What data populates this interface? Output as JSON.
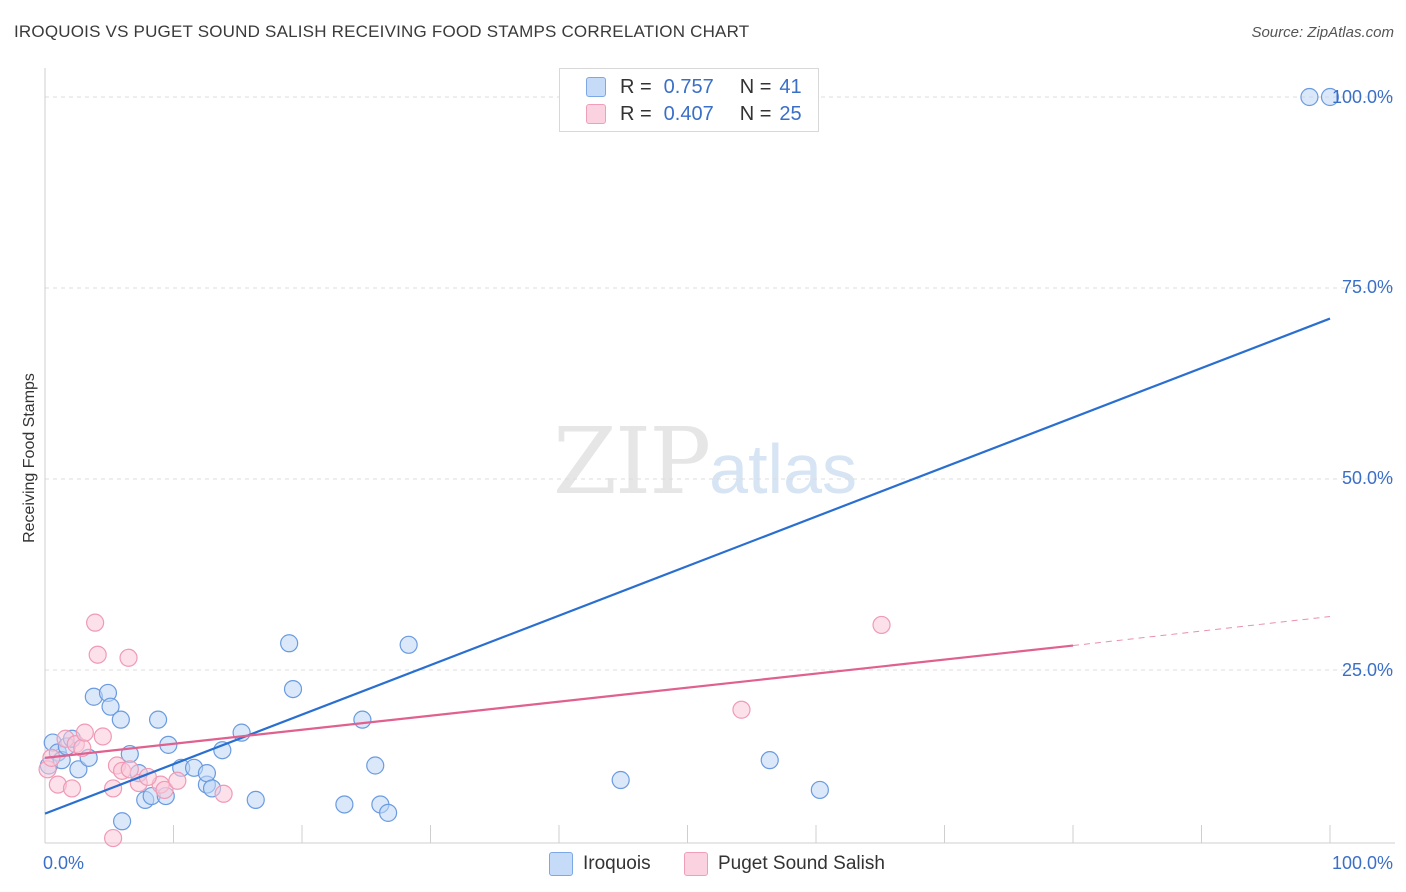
{
  "header": {
    "title": "IROQUOIS VS PUGET SOUND SALISH RECEIVING FOOD STAMPS CORRELATION CHART",
    "source": "Source: ZipAtlas.com"
  },
  "watermark": {
    "zip": "ZIP",
    "atlas": "atlas"
  },
  "legend": {
    "rows": [
      {
        "r_label": "R =",
        "r_value": "0.757",
        "n_label": "N =",
        "n_value": "41",
        "color": "#aecbf2"
      },
      {
        "r_label": "R =",
        "r_value": "0.407",
        "n_label": "N =",
        "n_value": "25",
        "color": "#f8c0d2"
      }
    ]
  },
  "bottom_legend": [
    {
      "label": "Iroquois",
      "color": "#bdd5f5"
    },
    {
      "label": "Puget Sound Salish",
      "color": "#f9c9d8"
    }
  ],
  "chart_data": {
    "type": "scatter",
    "title": "IROQUOIS VS PUGET SOUND SALISH RECEIVING FOOD STAMPS CORRELATION CHART",
    "xlabel": "",
    "ylabel": "Receiving Food Stamps",
    "xlim": [
      0,
      100
    ],
    "ylim": [
      0,
      100
    ],
    "x_tick_labels": [
      "0.0%",
      "100.0%"
    ],
    "y_tick_labels": [
      "25.0%",
      "50.0%",
      "75.0%",
      "100.0%"
    ],
    "y_ticks": [
      25,
      50,
      75,
      100
    ],
    "grid": true,
    "series": [
      {
        "name": "Iroquois",
        "color": "#6a9be0",
        "fill": "#bdd5f5",
        "line_color": "#2a6fd0",
        "trend": {
          "x0": 0,
          "y0": 6.2,
          "x1": 100,
          "y1": 71.0
        },
        "points": [
          [
            0.3,
            12.5
          ],
          [
            0.6,
            15.5
          ],
          [
            1.0,
            14.2
          ],
          [
            1.3,
            13.2
          ],
          [
            1.7,
            15.0
          ],
          [
            2.1,
            16.0
          ],
          [
            2.6,
            12.0
          ],
          [
            3.4,
            13.5
          ],
          [
            3.8,
            21.5
          ],
          [
            4.9,
            22.0
          ],
          [
            5.1,
            20.2
          ],
          [
            5.9,
            18.5
          ],
          [
            6.6,
            14.0
          ],
          [
            7.3,
            11.5
          ],
          [
            6.0,
            5.2
          ],
          [
            7.8,
            8.0
          ],
          [
            8.3,
            8.5
          ],
          [
            8.8,
            18.5
          ],
          [
            9.4,
            8.5
          ],
          [
            9.6,
            15.2
          ],
          [
            10.6,
            12.2
          ],
          [
            11.6,
            12.2
          ],
          [
            12.6,
            10.0
          ],
          [
            12.6,
            11.5
          ],
          [
            13.0,
            9.5
          ],
          [
            13.8,
            14.5
          ],
          [
            15.3,
            16.8
          ],
          [
            16.4,
            8.0
          ],
          [
            19.0,
            28.5
          ],
          [
            19.3,
            22.5
          ],
          [
            23.3,
            7.4
          ],
          [
            24.7,
            18.5
          ],
          [
            25.7,
            12.5
          ],
          [
            26.1,
            7.4
          ],
          [
            26.7,
            6.3
          ],
          [
            28.3,
            28.3
          ],
          [
            44.8,
            10.6
          ],
          [
            56.4,
            13.2
          ],
          [
            60.3,
            9.3
          ],
          [
            98.4,
            100.0
          ],
          [
            100.0,
            100.0
          ]
        ]
      },
      {
        "name": "Puget Sound Salish",
        "color": "#f09ab5",
        "fill": "#f9c9d8",
        "line_color": "#e0608e",
        "trend": {
          "x0": 0,
          "y0": 13.5,
          "x1": 80,
          "y1": 28.2
        },
        "trend_dashed": {
          "x0": 80,
          "y0": 28.2,
          "x1": 100,
          "y1": 32.0
        },
        "points": [
          [
            0.2,
            12.0
          ],
          [
            0.5,
            13.5
          ],
          [
            1.0,
            10.0
          ],
          [
            1.6,
            16.0
          ],
          [
            2.1,
            9.5
          ],
          [
            2.4,
            15.3
          ],
          [
            2.9,
            14.8
          ],
          [
            3.1,
            16.8
          ],
          [
            3.9,
            31.2
          ],
          [
            4.1,
            27.0
          ],
          [
            4.5,
            16.3
          ],
          [
            5.3,
            9.5
          ],
          [
            5.6,
            12.5
          ],
          [
            6.0,
            11.8
          ],
          [
            6.5,
            26.6
          ],
          [
            7.3,
            10.2
          ],
          [
            9.0,
            10.0
          ],
          [
            9.3,
            9.3
          ],
          [
            10.3,
            10.5
          ],
          [
            13.9,
            8.8
          ],
          [
            5.3,
            3.0
          ],
          [
            6.6,
            12.0
          ],
          [
            8.0,
            11.0
          ],
          [
            54.2,
            19.8
          ],
          [
            65.1,
            30.9
          ]
        ]
      }
    ]
  }
}
